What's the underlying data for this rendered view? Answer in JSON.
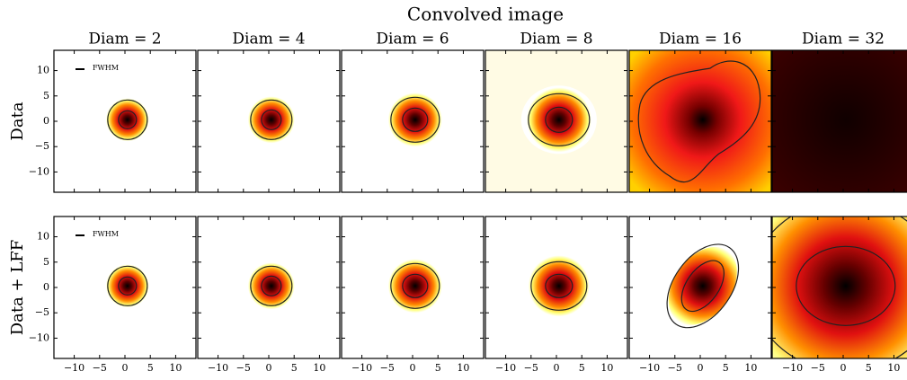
{
  "chart_data": {
    "type": "image-grid",
    "title": "Convolved image",
    "columns": [
      "Diam = 2",
      "Diam = 4",
      "Diam = 6",
      "Diam = 8",
      "Diam = 16",
      "Diam = 32"
    ],
    "rows": [
      "Data",
      "Data + LFF"
    ],
    "legend_label": "FWHM",
    "xlim": [
      -14,
      14
    ],
    "ylim": [
      -14,
      14
    ],
    "xticks": [
      {
        "value": -10,
        "label": "−10"
      },
      {
        "value": -5,
        "label": "−5"
      },
      0,
      5,
      10
    ],
    "yticks": [
      {
        "value": -10,
        "label": "−10"
      },
      {
        "value": -5,
        "label": "−5"
      },
      0,
      5,
      10
    ]
  }
}
